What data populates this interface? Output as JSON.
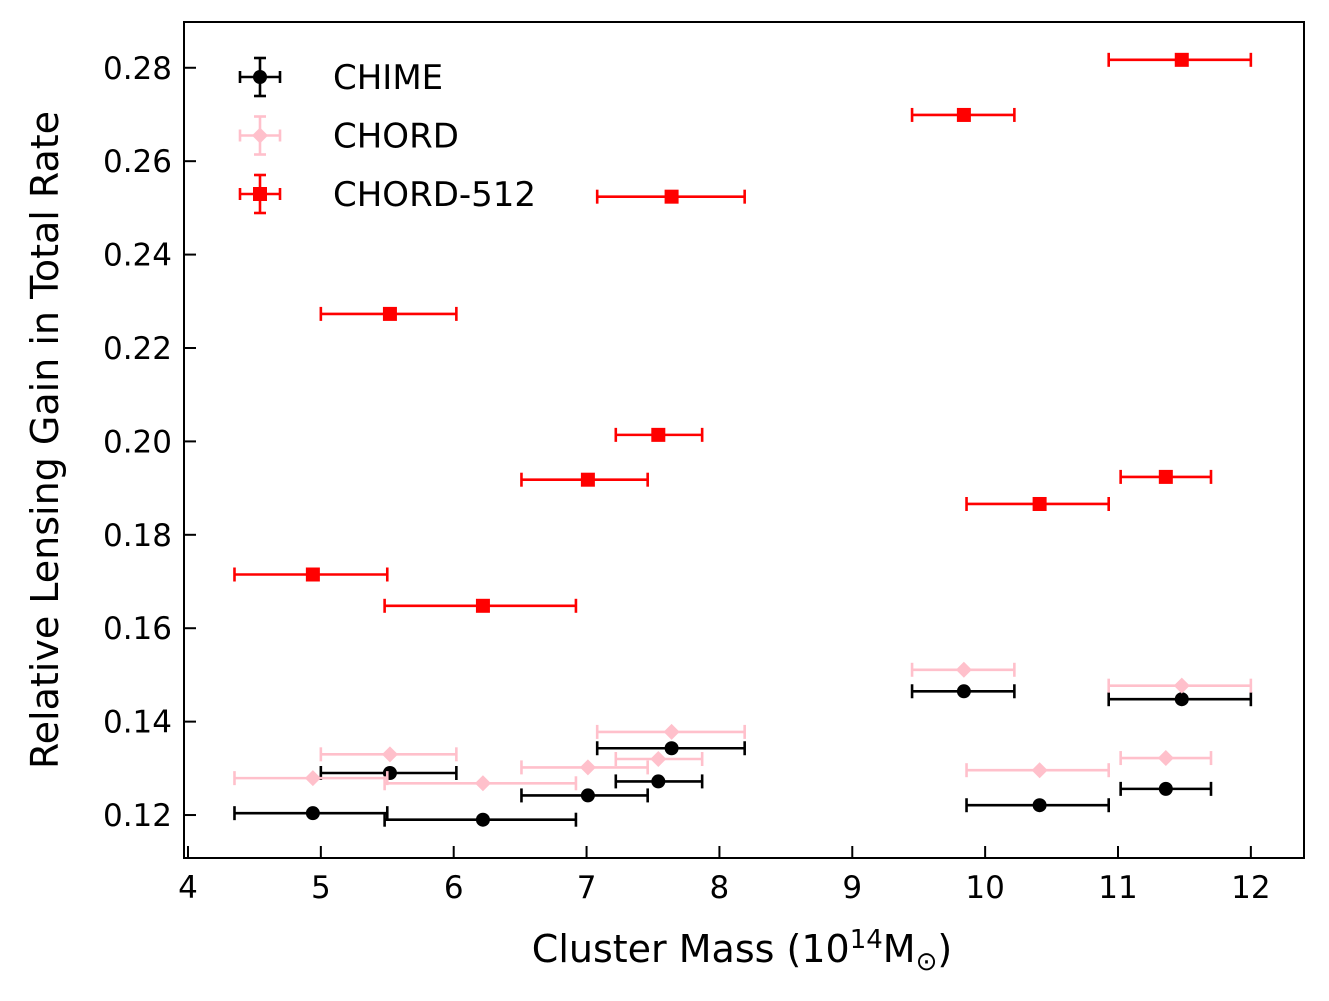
{
  "chart_data": {
    "type": "scatter",
    "title": "",
    "xlabel_prefix": "Cluster Mass (10",
    "xlabel_sup": "14",
    "xlabel_suffix": "M",
    "xlabel_symbol": "⊙",
    "xlabel_close": ")",
    "ylabel": "Relative Lensing Gain in Total Rate",
    "xlim": [
      3.97,
      12.4
    ],
    "ylim": [
      0.1108,
      0.2898
    ],
    "xticks": [
      4,
      5,
      6,
      7,
      8,
      9,
      10,
      11,
      12
    ],
    "xtick_labels": [
      "4",
      "5",
      "6",
      "7",
      "8",
      "9",
      "10",
      "11",
      "12"
    ],
    "yticks": [
      0.12,
      0.14,
      0.16,
      0.18,
      0.2,
      0.22,
      0.24,
      0.26,
      0.28
    ],
    "ytick_labels": [
      "0.12",
      "0.14",
      "0.16",
      "0.18",
      "0.20",
      "0.22",
      "0.24",
      "0.26",
      "0.28"
    ],
    "grid": false,
    "legend_position": "top-left",
    "series": [
      {
        "name": "CHIME",
        "color": "#000000",
        "marker": "circle",
        "points": [
          {
            "x": 4.94,
            "y": 0.1204,
            "xerr": [
              4.35,
              5.5
            ]
          },
          {
            "x": 5.52,
            "y": 0.129,
            "xerr": [
              5.0,
              6.02
            ]
          },
          {
            "x": 6.22,
            "y": 0.119,
            "xerr": [
              5.48,
              6.92
            ]
          },
          {
            "x": 7.01,
            "y": 0.1242,
            "xerr": [
              6.51,
              7.46
            ]
          },
          {
            "x": 7.54,
            "y": 0.1272,
            "xerr": [
              7.22,
              7.87
            ]
          },
          {
            "x": 7.64,
            "y": 0.1343,
            "xerr": [
              7.08,
              8.19
            ]
          },
          {
            "x": 9.84,
            "y": 0.1465,
            "xerr": [
              9.45,
              10.22
            ]
          },
          {
            "x": 10.41,
            "y": 0.1221,
            "xerr": [
              9.86,
              10.93
            ]
          },
          {
            "x": 11.36,
            "y": 0.1256,
            "xerr": [
              11.02,
              11.7
            ]
          },
          {
            "x": 11.48,
            "y": 0.1448,
            "xerr": [
              10.93,
              12.0
            ]
          }
        ]
      },
      {
        "name": "CHORD",
        "color": "#ffc0cb",
        "marker": "diamond",
        "points": [
          {
            "x": 4.94,
            "y": 0.1279,
            "xerr": [
              4.35,
              5.5
            ]
          },
          {
            "x": 5.52,
            "y": 0.133,
            "xerr": [
              5.0,
              6.02
            ]
          },
          {
            "x": 6.22,
            "y": 0.1268,
            "xerr": [
              5.48,
              6.92
            ]
          },
          {
            "x": 7.01,
            "y": 0.1302,
            "xerr": [
              6.51,
              7.46
            ]
          },
          {
            "x": 7.54,
            "y": 0.132,
            "xerr": [
              7.22,
              7.87
            ]
          },
          {
            "x": 7.64,
            "y": 0.1378,
            "xerr": [
              7.08,
              8.19
            ]
          },
          {
            "x": 9.84,
            "y": 0.1511,
            "xerr": [
              9.45,
              10.22
            ]
          },
          {
            "x": 10.41,
            "y": 0.1296,
            "xerr": [
              9.86,
              10.93
            ]
          },
          {
            "x": 11.36,
            "y": 0.1322,
            "xerr": [
              11.02,
              11.7
            ]
          },
          {
            "x": 11.48,
            "y": 0.1477,
            "xerr": [
              10.93,
              12.0
            ]
          }
        ]
      },
      {
        "name": "CHORD-512",
        "color": "#ff0000",
        "marker": "square",
        "points": [
          {
            "x": 4.94,
            "y": 0.1715,
            "xerr": [
              4.35,
              5.5
            ]
          },
          {
            "x": 5.52,
            "y": 0.2273,
            "xerr": [
              5.0,
              6.02
            ]
          },
          {
            "x": 6.22,
            "y": 0.1648,
            "xerr": [
              5.48,
              6.92
            ]
          },
          {
            "x": 7.01,
            "y": 0.1918,
            "xerr": [
              6.51,
              7.46
            ]
          },
          {
            "x": 7.54,
            "y": 0.2014,
            "xerr": [
              7.22,
              7.87
            ]
          },
          {
            "x": 7.64,
            "y": 0.2524,
            "xerr": [
              7.08,
              8.19
            ]
          },
          {
            "x": 9.84,
            "y": 0.2699,
            "xerr": [
              9.45,
              10.22
            ]
          },
          {
            "x": 10.41,
            "y": 0.1866,
            "xerr": [
              9.86,
              10.93
            ]
          },
          {
            "x": 11.36,
            "y": 0.1924,
            "xerr": [
              11.02,
              11.7
            ]
          },
          {
            "x": 11.48,
            "y": 0.2817,
            "xerr": [
              10.93,
              12.0
            ]
          }
        ]
      }
    ]
  }
}
